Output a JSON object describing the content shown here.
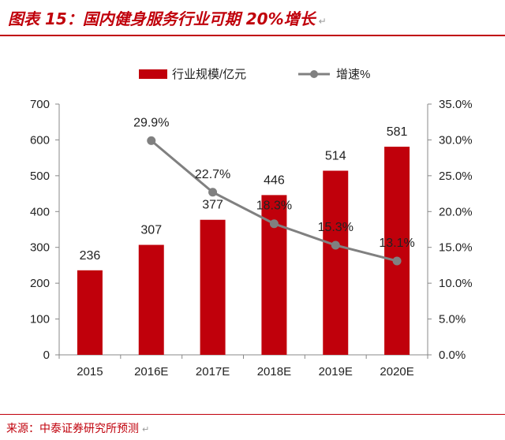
{
  "header": {
    "title": "图表 15：国内健身服务行业可期 20%增长",
    "mark": "↵"
  },
  "source": {
    "text": "来源：中泰证券研究所预测",
    "mark": "↵"
  },
  "colors": {
    "bar": "#c0000b",
    "line": "#808080",
    "accent": "#c0000b"
  },
  "chart_data": {
    "type": "bar",
    "categories": [
      "2015",
      "2016E",
      "2017E",
      "2018E",
      "2019E",
      "2020E"
    ],
    "series": [
      {
        "name": "行业规模/亿元",
        "type": "bar",
        "axis": "left",
        "values": [
          236,
          307,
          377,
          446,
          514,
          581
        ],
        "labels": [
          "236",
          "307",
          "377",
          "446",
          "514",
          "581"
        ]
      },
      {
        "name": "增速%",
        "type": "line",
        "axis": "right",
        "values": [
          null,
          29.9,
          22.7,
          18.3,
          15.3,
          13.1
        ],
        "labels": [
          "",
          "29.9%",
          "22.7%",
          "18.3%",
          "15.3%",
          "13.1%"
        ]
      }
    ],
    "y_left": {
      "min": 0,
      "max": 700,
      "ticks": [
        "0",
        "100",
        "200",
        "300",
        "400",
        "500",
        "600",
        "700"
      ]
    },
    "y_right": {
      "min": 0,
      "max": 35,
      "ticks": [
        "0.0%",
        "5.0%",
        "10.0%",
        "15.0%",
        "20.0%",
        "25.0%",
        "30.0%",
        "35.0%"
      ]
    },
    "legend": {
      "position": "top",
      "items": [
        "行业规模/亿元",
        "增速%"
      ]
    },
    "grid": false
  }
}
